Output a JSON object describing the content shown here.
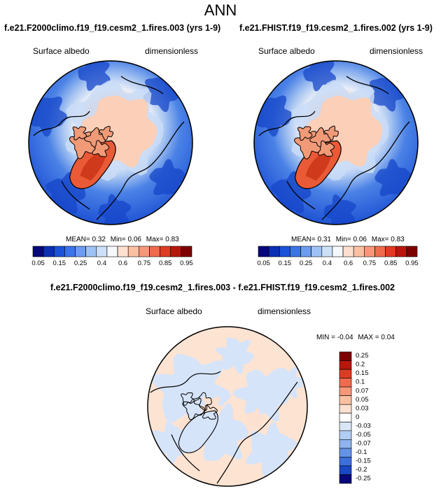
{
  "title": "ANN",
  "chart_data": [
    {
      "type": "heatmap",
      "projection": "polar stereographic (north pole)",
      "title": "f.e21.F2000climo.f19_f19.cesm2_1.fires.003 (yrs 1-9)",
      "variable": "Surface albedo",
      "units": "dimensionless",
      "stats": {
        "mean_label": "MEAN=",
        "mean": "0.32",
        "min_label": "Min=",
        "min": "0.06",
        "max_label": "Max=",
        "max": "0.83"
      },
      "colorbar": {
        "orientation": "horizontal",
        "levels": [
          "0.05",
          "0.1",
          "0.15",
          "0.2",
          "0.25",
          "0.3",
          "0.4",
          "0.5",
          "0.6",
          "0.7",
          "0.75",
          "0.8",
          "0.85",
          "0.9",
          "0.95"
        ],
        "tick_labels": [
          "0.05",
          "0.15",
          "0.25",
          "0.4",
          "0.6",
          "0.75",
          "0.85",
          "0.95"
        ]
      }
    },
    {
      "type": "heatmap",
      "projection": "polar stereographic (north pole)",
      "title": "f.e21.FHIST.f19_f19.cesm2_1.fires.002 (yrs 1-9)",
      "variable": "Surface albedo",
      "units": "dimensionless",
      "stats": {
        "mean_label": "MEAN=",
        "mean": "0.31",
        "min_label": "Min=",
        "min": "0.06",
        "max_label": "Max=",
        "max": "0.83"
      },
      "colorbar": {
        "orientation": "horizontal",
        "levels": [
          "0.05",
          "0.1",
          "0.15",
          "0.2",
          "0.25",
          "0.3",
          "0.4",
          "0.5",
          "0.6",
          "0.7",
          "0.75",
          "0.8",
          "0.85",
          "0.9",
          "0.95"
        ],
        "tick_labels": [
          "0.05",
          "0.15",
          "0.25",
          "0.4",
          "0.6",
          "0.75",
          "0.85",
          "0.95"
        ]
      }
    },
    {
      "type": "heatmap",
      "projection": "polar stereographic (north pole)",
      "title": "f.e21.F2000climo.f19_f19.cesm2_1.fires.003 - f.e21.FHIST.f19_f19.cesm2_1.fires.002",
      "variable": "Surface albedo",
      "units": "dimensionless",
      "stats": {
        "min_label": "MIN =",
        "min": "-0.04",
        "max_label": "MAX =",
        "max": "0.04"
      },
      "colorbar": {
        "orientation": "vertical",
        "tick_labels": [
          "0.25",
          "0.2",
          "0.15",
          "0.1",
          "0.07",
          "0.05",
          "0.03",
          "0",
          "-0.03",
          "-0.05",
          "-0.07",
          "-0.1",
          "-0.15",
          "-0.2",
          "-0.25"
        ]
      }
    }
  ],
  "colors": {
    "seq": [
      "#08087a",
      "#0b2fb5",
      "#1a52d8",
      "#3b73ea",
      "#6b9cf0",
      "#9ec2f5",
      "#cde0f8",
      "#f5f8fc",
      "#fde0cf",
      "#fbc0a2",
      "#f7977a",
      "#f06b4d",
      "#de3c22",
      "#b9160b",
      "#7d0000"
    ],
    "diff": [
      "#7d0000",
      "#b9160b",
      "#de3c22",
      "#f06b4d",
      "#f7977a",
      "#fbc0a2",
      "#fde0cf",
      "#ffffff",
      "#d9e6f8",
      "#b2cdf3",
      "#8fb3ee",
      "#6593e6",
      "#3c6fdb",
      "#1a47c4",
      "#08087a"
    ]
  }
}
